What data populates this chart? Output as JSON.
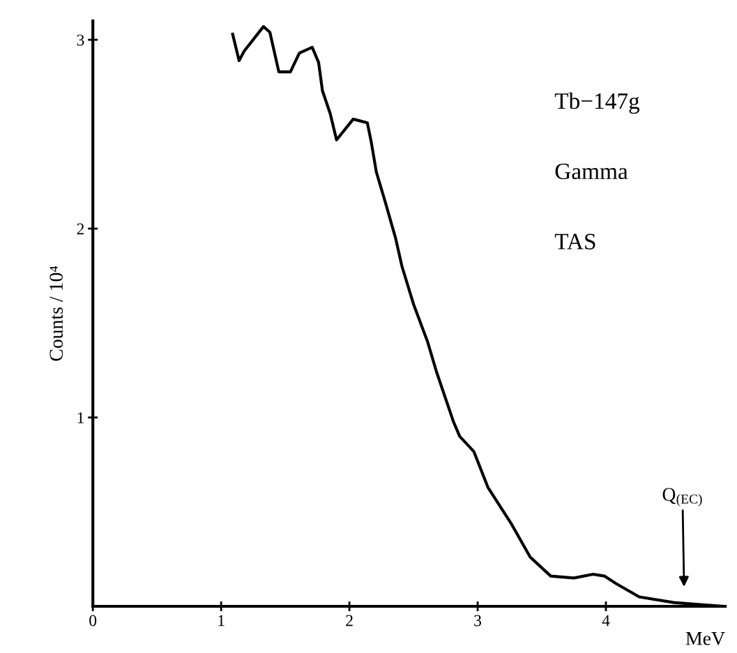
{
  "chart_data": {
    "type": "line",
    "xlabel": "MeV",
    "ylabel": "Counts / 10⁴",
    "annotations": [
      "Tb−147g",
      "Gamma",
      "TAS",
      "Q$_{(EC)}$"
    ],
    "series": [
      {
        "color": "#000000",
        "x": [
          1.09,
          1.14,
          1.18,
          1.33,
          1.38,
          1.45,
          1.54,
          1.61,
          1.71,
          1.76,
          1.79,
          1.85,
          1.9,
          2.03,
          2.14,
          2.17,
          2.21,
          2.28,
          2.36,
          2.41,
          2.5,
          2.61,
          2.68,
          2.81,
          2.86,
          2.97,
          3.08,
          3.26,
          3.41,
          3.57,
          3.75,
          3.9,
          3.99,
          4.08,
          4.26,
          4.53,
          4.91
        ],
        "values": [
          3.03,
          2.89,
          2.94,
          3.07,
          3.04,
          2.83,
          2.83,
          2.93,
          2.96,
          2.88,
          2.73,
          2.61,
          2.47,
          2.58,
          2.56,
          2.46,
          2.3,
          2.14,
          1.95,
          1.8,
          1.6,
          1.4,
          1.24,
          0.98,
          0.9,
          0.82,
          0.63,
          0.44,
          0.26,
          0.16,
          0.15,
          0.17,
          0.16,
          0.12,
          0.05,
          0.02,
          0.0
        ]
      }
    ],
    "xlim": [
      0,
      4.93
    ],
    "ylim": [
      0,
      3.1
    ],
    "xticks": [
      0,
      1,
      2,
      3,
      4
    ],
    "yticks": [
      1,
      2,
      3
    ],
    "grid": false,
    "legend": false,
    "marker": "none",
    "line_style": "solid"
  }
}
